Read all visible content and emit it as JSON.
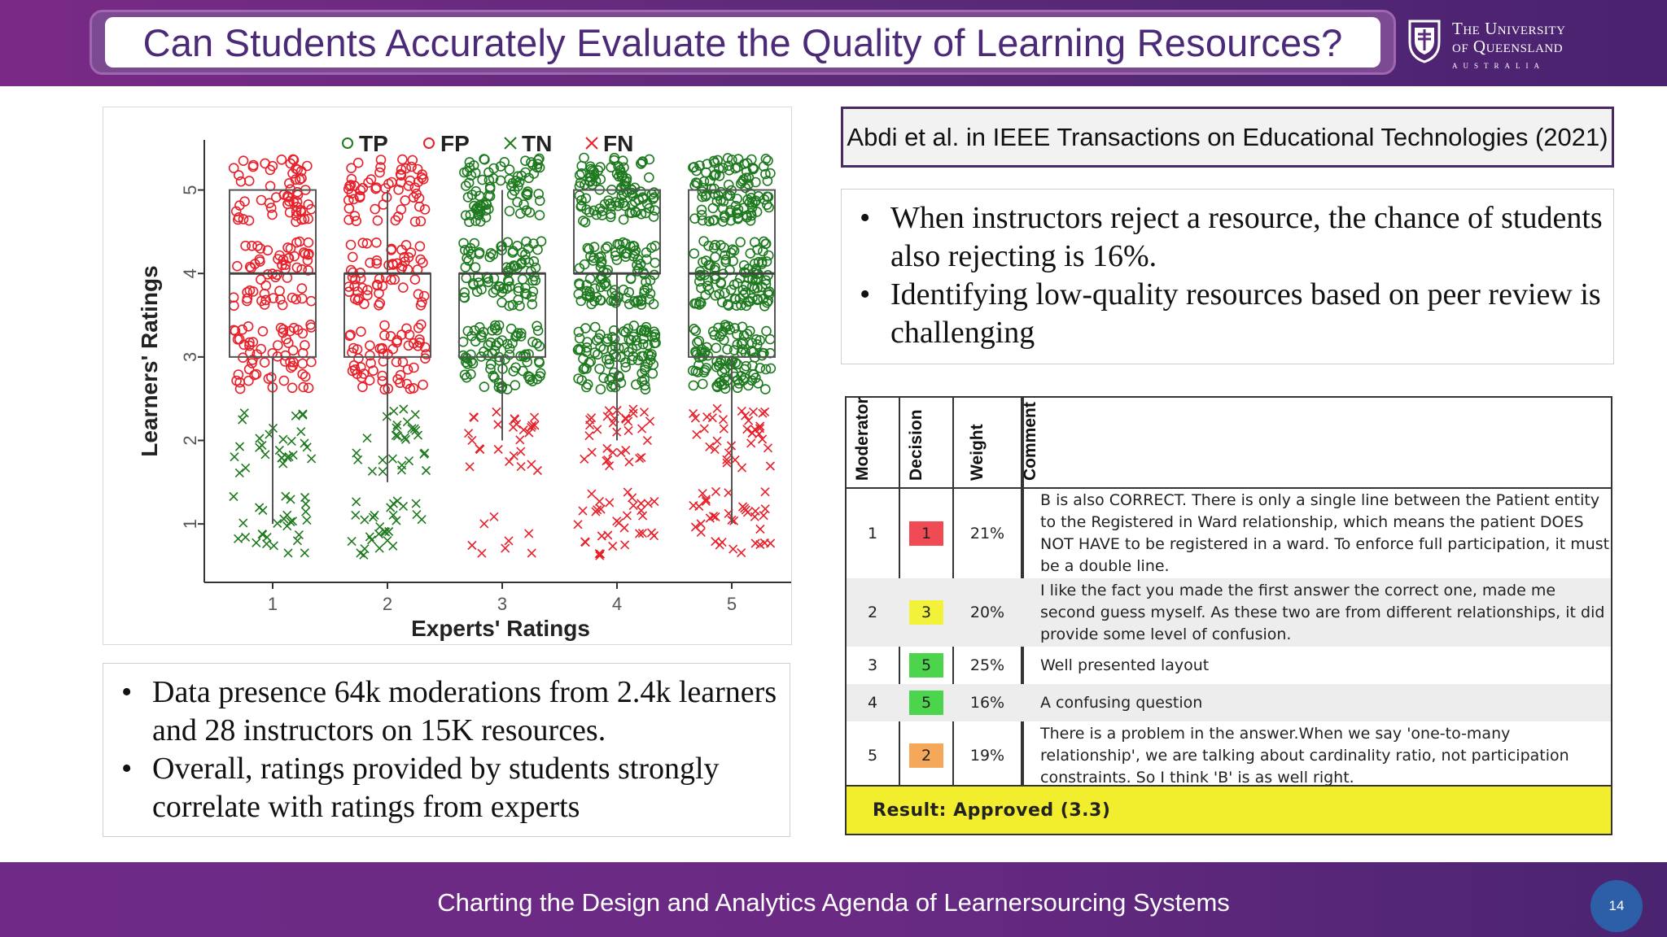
{
  "header": {
    "title": "Can Students Accurately Evaluate the Quality of Learning Resources?",
    "logo": {
      "line1": "The University",
      "line2": "of Queensland",
      "line3": "AUSTRALIA",
      "icon": "uq-crest-icon"
    }
  },
  "reference": "Abdi et al. in IEEE Transactions on Educational Technologies (2021)",
  "bullets_right": [
    "When instructors reject a resource, the chance of students also rejecting is 16%.",
    "Identifying low-quality resources based on peer review is challenging"
  ],
  "bullets_left": [
    "Data presence 64k moderations from 2.4k learners and 28 instructors on 15K resources.",
    "Overall, ratings provided by students strongly correlate with ratings from experts"
  ],
  "bullet_char": "•",
  "chart_data": {
    "type": "scatter",
    "subtype": "jittered boxplot",
    "xlabel": "Experts' Ratings",
    "ylabel": "Learners' Ratings",
    "x_ticks": [
      "1",
      "2",
      "3",
      "4",
      "5"
    ],
    "y_ticks": [
      "1",
      "2",
      "3",
      "4",
      "5"
    ],
    "ylim": [
      0.3,
      5.6
    ],
    "legend": [
      {
        "label": "TP",
        "marker": "circle",
        "color": "#1e7a1e"
      },
      {
        "label": "FP",
        "marker": "circle",
        "color": "#e8202a"
      },
      {
        "label": "TN",
        "marker": "cross",
        "color": "#1e7a1e"
      },
      {
        "label": "FN",
        "marker": "cross",
        "color": "#e8202a"
      }
    ],
    "legend_position": "top",
    "boxes": [
      {
        "x": 1,
        "q1": 3,
        "median": 4,
        "q3": 5,
        "whisker_low": 1,
        "whisker_high": 5
      },
      {
        "x": 2,
        "q1": 3,
        "median": 4,
        "q3": 4,
        "whisker_low": 1.5,
        "whisker_high": 5
      },
      {
        "x": 3,
        "q1": 3,
        "median": 4,
        "q3": 4,
        "whisker_low": 2,
        "whisker_high": 5
      },
      {
        "x": 4,
        "q1": 4,
        "median": 4,
        "q3": 5,
        "whisker_low": 2,
        "whisker_high": 5
      },
      {
        "x": 5,
        "q1": 3,
        "median": 4,
        "q3": 5,
        "whisker_low": 1,
        "whisker_high": 5
      }
    ],
    "point_classes": [
      {
        "x": 1,
        "class_at_rating_3_to_5": "FP",
        "class_at_rating_1_to_2": "TN"
      },
      {
        "x": 2,
        "class_at_rating_3_to_5": "FP",
        "class_at_rating_1_to_2": "TN"
      },
      {
        "x": 3,
        "class_at_rating_3_to_5": "TP",
        "class_at_rating_1_to_2": "FN"
      },
      {
        "x": 4,
        "class_at_rating_3_to_5": "TP",
        "class_at_rating_1_to_2": "FN"
      },
      {
        "x": 5,
        "class_at_rating_3_to_5": "TP",
        "class_at_rating_1_to_2": "FN"
      }
    ]
  },
  "moderation_table": {
    "headers": [
      "Moderator",
      "Decision",
      "Weight",
      "Comment"
    ],
    "rows": [
      {
        "moderator": "1",
        "decision": "1",
        "decision_color": "#f04a55",
        "weight": "21%",
        "comment": "B is also CORRECT. There is only a single line between the Patient entity to the Registered in Ward relationship, which means the patient DOES NOT HAVE to be registered in a ward. To enforce full participation, it must be a double line."
      },
      {
        "moderator": "2",
        "decision": "3",
        "decision_color": "#f2f23a",
        "weight": "20%",
        "comment": "I like the fact you made the first answer the correct one, made me second guess myself. As these two are from different relationships, it did provide some level of confusion."
      },
      {
        "moderator": "3",
        "decision": "5",
        "decision_color": "#4cd44c",
        "weight": "25%",
        "comment": "Well presented layout"
      },
      {
        "moderator": "4",
        "decision": "5",
        "decision_color": "#4cd44c",
        "weight": "16%",
        "comment": "A confusing question"
      },
      {
        "moderator": "5",
        "decision": "2",
        "decision_color": "#f5a85a",
        "weight": "19%",
        "comment": "There is a problem in the answer.When we say 'one-to-many relationship', we are talking about cardinality ratio, not participation constraints. So I think 'B' is as well right."
      }
    ],
    "result": "Result: Approved (3.3)"
  },
  "footer": {
    "text": "Charting the Design and Analytics Agenda of Learnersourcing Systems",
    "page_number": "14"
  }
}
